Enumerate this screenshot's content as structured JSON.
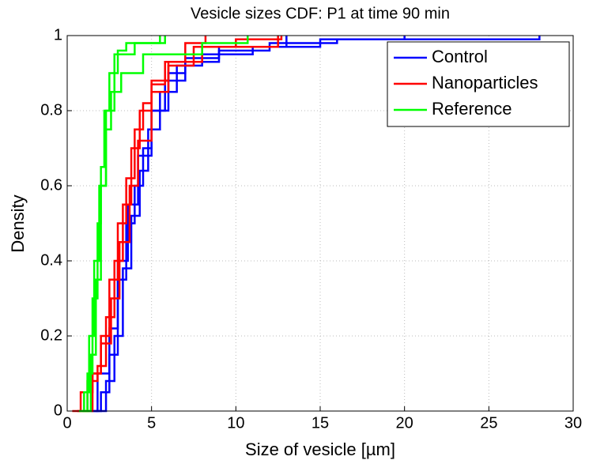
{
  "chart_data": {
    "type": "step",
    "title": "Vesicle sizes CDF: P1 at time 90 min",
    "x_label": "Size of vesicle [µm]",
    "y_label": "Density",
    "xlim": [
      0,
      30
    ],
    "xticks": [
      0,
      5,
      10,
      15,
      20,
      25,
      30
    ],
    "ylim": [
      0,
      1
    ],
    "yticks": [
      0,
      0.2,
      0.4,
      0.6,
      0.8,
      1
    ],
    "grid": true,
    "legend": "upper right",
    "series": [
      {
        "name": "Control",
        "color": "#0000ff",
        "lines": [
          {
            "x": [
              1.4,
              2,
              2.5,
              3,
              3.5,
              4,
              4.5,
              5,
              6,
              7,
              9,
              12,
              16,
              28
            ],
            "values": [
              0,
              0.05,
              0.15,
              0.35,
              0.5,
              0.6,
              0.7,
              0.8,
              0.9,
              0.94,
              0.96,
              0.98,
              0.99,
              1
            ]
          },
          {
            "x": [
              1.7,
              2.3,
              2.8,
              3.3,
              3.8,
              4.3,
              4.8,
              5.5,
              6.5,
              8,
              11,
              15,
              20
            ],
            "values": [
              0,
              0.08,
              0.2,
              0.38,
              0.52,
              0.64,
              0.75,
              0.85,
              0.92,
              0.95,
              0.97,
              0.99,
              1
            ]
          },
          {
            "x": [
              1.2,
              1.8,
              2.5,
              3,
              3.6,
              4.2,
              5,
              5.8,
              7,
              9,
              13
            ],
            "values": [
              0,
              0.1,
              0.22,
              0.4,
              0.55,
              0.68,
              0.8,
              0.88,
              0.93,
              0.97,
              1
            ]
          }
        ]
      },
      {
        "name": "Nanoparticles",
        "color": "#ff0000",
        "lines": [
          {
            "x": [
              0.3,
              0.8,
              1.5,
              2,
              2.5,
              3,
              3.5,
              4,
              4.5,
              5,
              6,
              8,
              10,
              12.7
            ],
            "values": [
              0,
              0.05,
              0.1,
              0.2,
              0.35,
              0.5,
              0.62,
              0.75,
              0.82,
              0.88,
              0.93,
              0.97,
              0.99,
              1
            ]
          },
          {
            "x": [
              0.6,
              1.2,
              1.8,
              2.3,
              2.8,
              3.3,
              3.8,
              4.3,
              5,
              5.8,
              7,
              8.2
            ],
            "values": [
              0,
              0.08,
              0.12,
              0.25,
              0.4,
              0.55,
              0.7,
              0.8,
              0.87,
              0.93,
              0.98,
              1
            ]
          },
          {
            "x": [
              0.9,
              1.5,
              2,
              2.6,
              3.1,
              3.7,
              4.2,
              5,
              6,
              7.5,
              12.5
            ],
            "values": [
              0,
              0.1,
              0.18,
              0.3,
              0.45,
              0.6,
              0.72,
              0.85,
              0.92,
              0.97,
              1
            ]
          }
        ]
      },
      {
        "name": "Reference",
        "color": "#00ff00",
        "lines": [
          {
            "x": [
              0.9,
              1.2,
              1.5,
              1.8,
              2,
              2.2,
              2.5,
              3,
              3.5,
              5.5
            ],
            "values": [
              0,
              0.1,
              0.3,
              0.5,
              0.65,
              0.8,
              0.9,
              0.96,
              0.98,
              1
            ]
          },
          {
            "x": [
              1.1,
              1.4,
              1.7,
              2,
              2.3,
              2.6,
              3.2,
              4.5,
              8,
              10.7
            ],
            "values": [
              0,
              0.15,
              0.35,
              0.6,
              0.75,
              0.85,
              0.9,
              0.95,
              0.98,
              1
            ]
          },
          {
            "x": [
              0.7,
              1,
              1.3,
              1.6,
              1.9,
              2.3,
              2.8,
              4,
              5.8
            ],
            "values": [
              0,
              0.05,
              0.2,
              0.4,
              0.6,
              0.8,
              0.95,
              0.98,
              1
            ]
          }
        ]
      }
    ]
  }
}
